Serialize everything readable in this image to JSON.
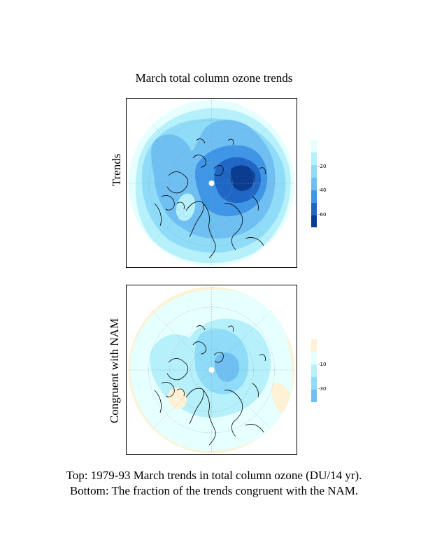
{
  "title": "March total column ozone trends",
  "panels": {
    "top": {
      "label": "Trends",
      "cbar_ticks": [
        "-20",
        "-40",
        "-60"
      ]
    },
    "bottom": {
      "label": "Congruent with NAM",
      "cbar_ticks": [
        "-10",
        "-30"
      ]
    }
  },
  "caption": {
    "line1": "Top: 1979-93 March trends in total column ozone (DU/14 yr).",
    "line2": "Bottom: The fraction of the trends congruent with the NAM."
  },
  "colors": {
    "orange_pale": "#fdf1d6",
    "cyan_palest": "#e6ffff",
    "cyan_light": "#b6f0fb",
    "cyan_mid": "#8fdcf8",
    "blue_light": "#6fbff3",
    "blue_mid": "#3f96e6",
    "blue_dark": "#1f66c5",
    "blue_deep": "#0a3d8f"
  }
}
